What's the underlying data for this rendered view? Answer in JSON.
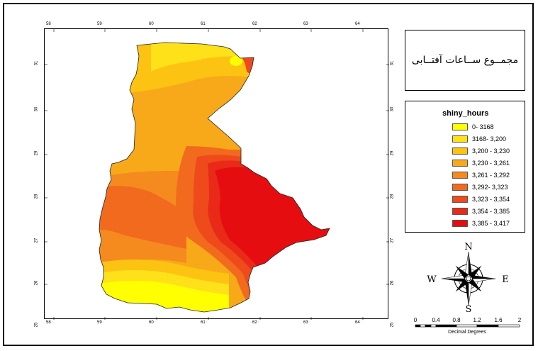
{
  "title": "مجمــوع ســاعات آفتــابی",
  "legend": {
    "title": "shiny_hours",
    "items": [
      {
        "label": "0- 3168",
        "color": "#ffff00"
      },
      {
        "label": "3168- 3,200",
        "color": "#ffe11a"
      },
      {
        "label": "3,200 - 3,230",
        "color": "#fcc313"
      },
      {
        "label": "3,230 - 3,261",
        "color": "#f8a91a"
      },
      {
        "label": "3,261 - 3,292",
        "color": "#f58b1e"
      },
      {
        "label": "3,292- 3,323",
        "color": "#f26a1e"
      },
      {
        "label": "3,323 - 3,354",
        "color": "#ee4a1c"
      },
      {
        "label": "3,354 - 3,385",
        "color": "#ea2a18"
      },
      {
        "label": "3,385 - 3,417",
        "color": "#e60d10"
      }
    ]
  },
  "graticule": {
    "lon_labels": [
      "58",
      "59",
      "60",
      "61",
      "62",
      "63",
      "64"
    ],
    "lat_labels": [
      "31",
      "30",
      "29",
      "28",
      "27",
      "26",
      "25"
    ]
  },
  "north_arrow": {
    "n": "N",
    "s": "S",
    "e": "E",
    "w": "W"
  },
  "scale_bar": {
    "labels": [
      "0",
      "0.4",
      "0.8",
      "1.2",
      "1.6",
      "2"
    ],
    "unit": "Decimal Degrees"
  }
}
